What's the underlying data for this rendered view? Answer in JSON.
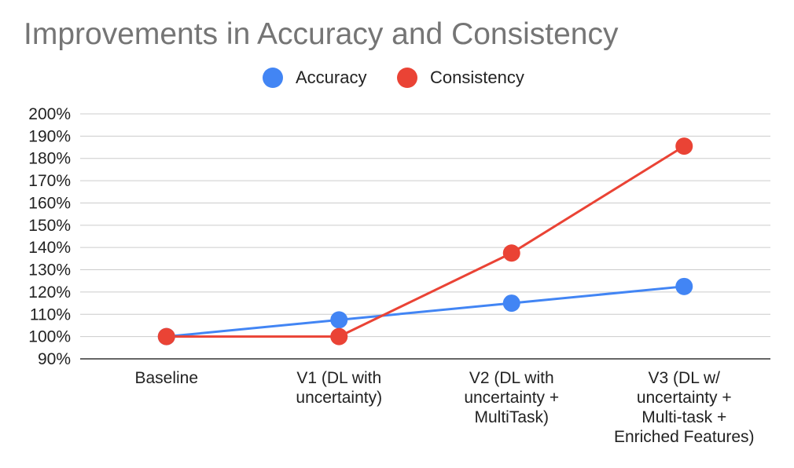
{
  "chart_data": {
    "type": "line",
    "title": "Improvements in Accuracy and Consistency",
    "categories": [
      [
        "Baseline"
      ],
      [
        "V1 (DL with",
        "uncertainty)"
      ],
      [
        "V2 (DL with",
        "uncertainty +",
        "MultiTask)"
      ],
      [
        "V3 (DL w/",
        "uncertainty +",
        "Multi-task +",
        "Enriched Features)"
      ]
    ],
    "series": [
      {
        "name": "Accuracy",
        "color": "#4285f4",
        "values": [
          100,
          107.5,
          115,
          122.5
        ]
      },
      {
        "name": "Consistency",
        "color": "#ea4335",
        "values": [
          100,
          100,
          137.5,
          185.5
        ]
      }
    ],
    "y_ticks": [
      "90%",
      "100%",
      "110%",
      "120%",
      "130%",
      "140%",
      "150%",
      "160%",
      "170%",
      "180%",
      "190%",
      "200%"
    ],
    "ylim": [
      90,
      200
    ],
    "xlabel": "",
    "ylabel": "",
    "grid": true,
    "legend_position": "top"
  }
}
